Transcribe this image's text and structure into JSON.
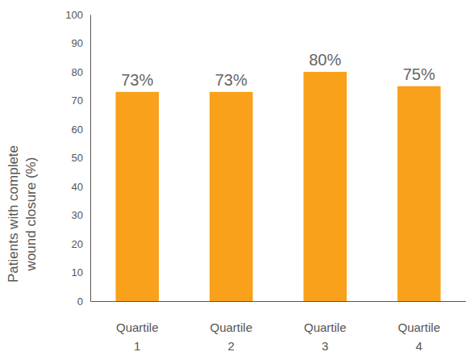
{
  "chart_data": {
    "type": "bar",
    "y_label": [
      "Patients with complete",
      "wound closure (%)"
    ],
    "categories": [
      "Quartile 1",
      "Quartile 2",
      "Quartile 3",
      "Quartile 4"
    ],
    "values": [
      73,
      73,
      80,
      75
    ],
    "value_labels": [
      "73%",
      "73%",
      "80%",
      "75%"
    ],
    "color": "#f9a11b",
    "ylim": [
      0,
      100
    ],
    "yticks": [
      0,
      10,
      20,
      30,
      40,
      50,
      60,
      70,
      80,
      90,
      100
    ],
    "grid": false,
    "data_labels": true
  }
}
